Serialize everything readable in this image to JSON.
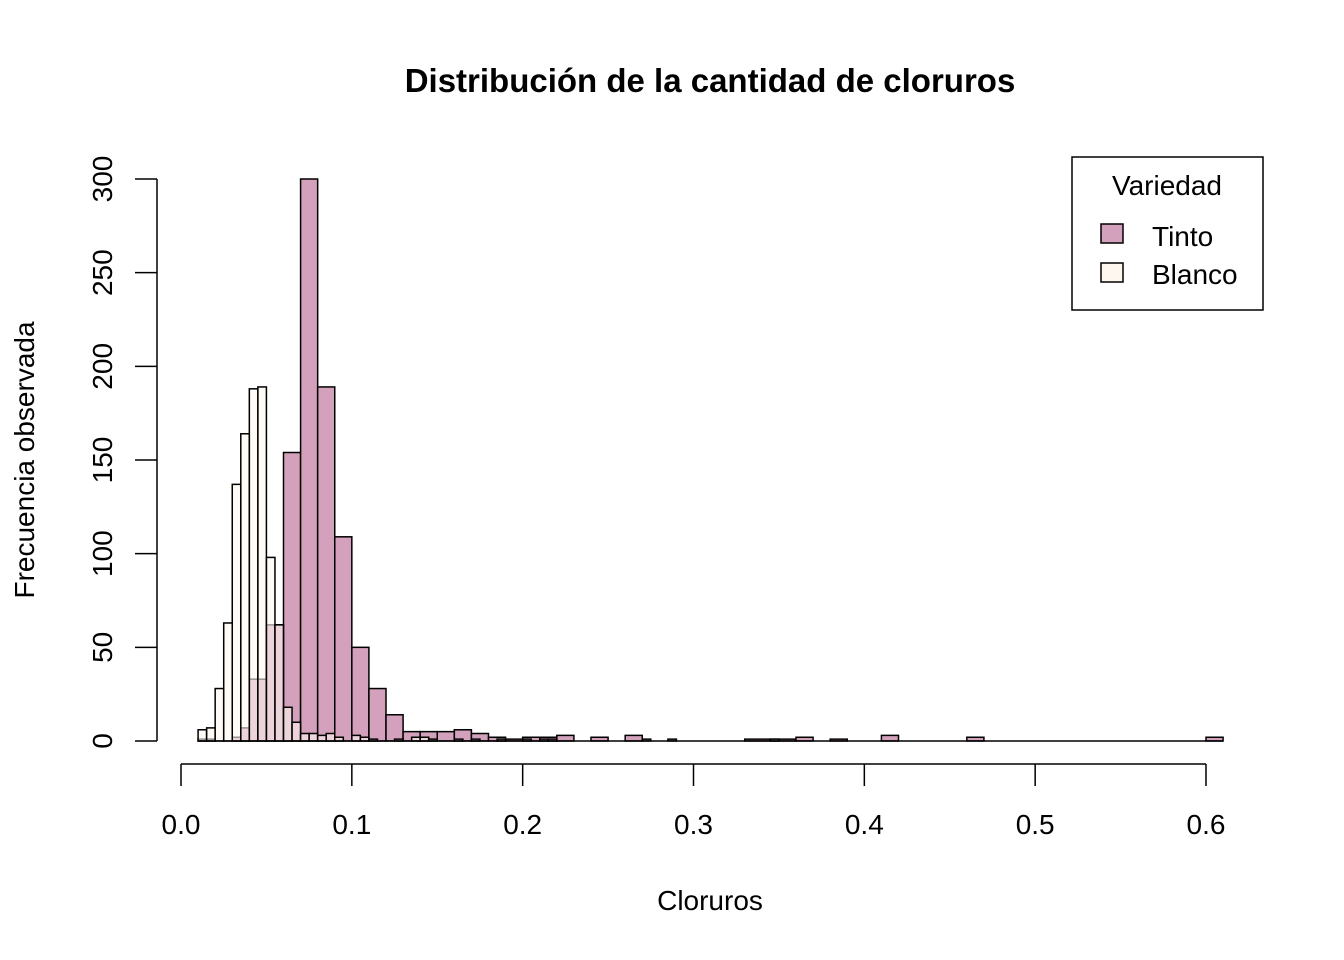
{
  "chart_data": {
    "type": "bar",
    "title": "Distribución de la cantidad de cloruros",
    "xlabel": "Cloruros",
    "ylabel": "Frecuencia observada",
    "xlim": [
      0.0,
      0.6
    ],
    "ylim": [
      0,
      300
    ],
    "bin_width": 0.005,
    "x_ticks": [
      "0.0",
      "0.1",
      "0.2",
      "0.3",
      "0.4",
      "0.5",
      "0.6"
    ],
    "x_tick_values": [
      0.0,
      0.1,
      0.2,
      0.3,
      0.4,
      0.5,
      0.6
    ],
    "y_ticks": [
      "0",
      "50",
      "100",
      "150",
      "200",
      "250",
      "300"
    ],
    "y_tick_values": [
      0,
      50,
      100,
      150,
      200,
      250,
      300
    ],
    "grid": false,
    "legend": {
      "title": "Variedad",
      "position": "top-right",
      "entries": [
        {
          "label": "Tinto",
          "color": "#d3a1bb"
        },
        {
          "label": "Blanco",
          "color": "#fdf7ef"
        }
      ]
    },
    "series": [
      {
        "name": "Tinto",
        "color": "#d3a1bb",
        "bins": [
          {
            "x0": 0.01,
            "x1": 0.015,
            "count": 1
          },
          {
            "x0": 0.015,
            "x1": 0.02,
            "count": 1
          },
          {
            "x0": 0.03,
            "x1": 0.035,
            "count": 2
          },
          {
            "x0": 0.035,
            "x1": 0.04,
            "count": 7
          },
          {
            "x0": 0.04,
            "x1": 0.05,
            "count": 33
          },
          {
            "x0": 0.05,
            "x1": 0.06,
            "count": 62
          },
          {
            "x0": 0.06,
            "x1": 0.07,
            "count": 154
          },
          {
            "x0": 0.07,
            "x1": 0.08,
            "count": 300
          },
          {
            "x0": 0.08,
            "x1": 0.09,
            "count": 189
          },
          {
            "x0": 0.09,
            "x1": 0.1,
            "count": 109
          },
          {
            "x0": 0.1,
            "x1": 0.11,
            "count": 50
          },
          {
            "x0": 0.11,
            "x1": 0.12,
            "count": 28
          },
          {
            "x0": 0.12,
            "x1": 0.13,
            "count": 14
          },
          {
            "x0": 0.13,
            "x1": 0.14,
            "count": 5
          },
          {
            "x0": 0.14,
            "x1": 0.15,
            "count": 5
          },
          {
            "x0": 0.15,
            "x1": 0.16,
            "count": 5
          },
          {
            "x0": 0.16,
            "x1": 0.17,
            "count": 6
          },
          {
            "x0": 0.17,
            "x1": 0.18,
            "count": 4
          },
          {
            "x0": 0.18,
            "x1": 0.19,
            "count": 2
          },
          {
            "x0": 0.19,
            "x1": 0.2,
            "count": 1
          },
          {
            "x0": 0.2,
            "x1": 0.21,
            "count": 2
          },
          {
            "x0": 0.21,
            "x1": 0.22,
            "count": 2
          },
          {
            "x0": 0.22,
            "x1": 0.23,
            "count": 3
          },
          {
            "x0": 0.24,
            "x1": 0.25,
            "count": 2
          },
          {
            "x0": 0.26,
            "x1": 0.27,
            "count": 3
          },
          {
            "x0": 0.27,
            "x1": 0.275,
            "count": 1
          },
          {
            "x0": 0.285,
            "x1": 0.29,
            "count": 1
          },
          {
            "x0": 0.33,
            "x1": 0.36,
            "count": 1
          },
          {
            "x0": 0.36,
            "x1": 0.37,
            "count": 2
          },
          {
            "x0": 0.38,
            "x1": 0.39,
            "count": 1
          },
          {
            "x0": 0.41,
            "x1": 0.42,
            "count": 3
          },
          {
            "x0": 0.46,
            "x1": 0.47,
            "count": 2
          },
          {
            "x0": 0.6,
            "x1": 0.61,
            "count": 2
          }
        ]
      },
      {
        "name": "Blanco",
        "color": "#fdf7ef",
        "bins": [
          {
            "x0": 0.01,
            "x1": 0.015,
            "count": 6
          },
          {
            "x0": 0.015,
            "x1": 0.02,
            "count": 7
          },
          {
            "x0": 0.02,
            "x1": 0.025,
            "count": 28
          },
          {
            "x0": 0.025,
            "x1": 0.03,
            "count": 63
          },
          {
            "x0": 0.03,
            "x1": 0.035,
            "count": 137
          },
          {
            "x0": 0.035,
            "x1": 0.04,
            "count": 164
          },
          {
            "x0": 0.04,
            "x1": 0.045,
            "count": 188
          },
          {
            "x0": 0.045,
            "x1": 0.05,
            "count": 189
          },
          {
            "x0": 0.05,
            "x1": 0.055,
            "count": 98
          },
          {
            "x0": 0.055,
            "x1": 0.06,
            "count": 62
          },
          {
            "x0": 0.06,
            "x1": 0.065,
            "count": 18
          },
          {
            "x0": 0.065,
            "x1": 0.07,
            "count": 10
          },
          {
            "x0": 0.07,
            "x1": 0.075,
            "count": 4
          },
          {
            "x0": 0.075,
            "x1": 0.08,
            "count": 4
          },
          {
            "x0": 0.08,
            "x1": 0.085,
            "count": 3
          },
          {
            "x0": 0.085,
            "x1": 0.09,
            "count": 4
          },
          {
            "x0": 0.09,
            "x1": 0.095,
            "count": 2
          },
          {
            "x0": 0.1,
            "x1": 0.105,
            "count": 3
          },
          {
            "x0": 0.105,
            "x1": 0.11,
            "count": 2
          },
          {
            "x0": 0.11,
            "x1": 0.115,
            "count": 1
          },
          {
            "x0": 0.125,
            "x1": 0.13,
            "count": 1
          },
          {
            "x0": 0.135,
            "x1": 0.14,
            "count": 2
          },
          {
            "x0": 0.14,
            "x1": 0.145,
            "count": 2
          },
          {
            "x0": 0.145,
            "x1": 0.15,
            "count": 1
          },
          {
            "x0": 0.16,
            "x1": 0.165,
            "count": 1
          },
          {
            "x0": 0.17,
            "x1": 0.175,
            "count": 1
          },
          {
            "x0": 0.185,
            "x1": 0.19,
            "count": 1
          },
          {
            "x0": 0.2,
            "x1": 0.205,
            "count": 1
          },
          {
            "x0": 0.21,
            "x1": 0.215,
            "count": 1
          },
          {
            "x0": 0.215,
            "x1": 0.22,
            "count": 1
          },
          {
            "x0": 0.345,
            "x1": 0.35,
            "count": 1
          }
        ]
      }
    ]
  }
}
